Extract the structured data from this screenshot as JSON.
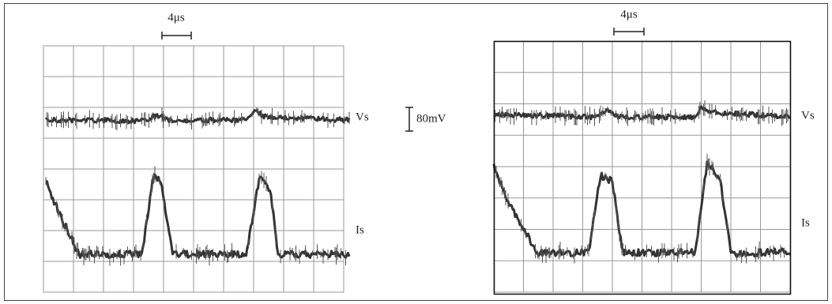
{
  "left_panel": {
    "time_scale": "4μs",
    "voltage_label": "Vs",
    "current_label": "Is"
  },
  "voltage_scale": "80mV",
  "right_panel": {
    "time_scale": "4μs",
    "voltage_label": "Vs",
    "current_label": "Is"
  }
}
